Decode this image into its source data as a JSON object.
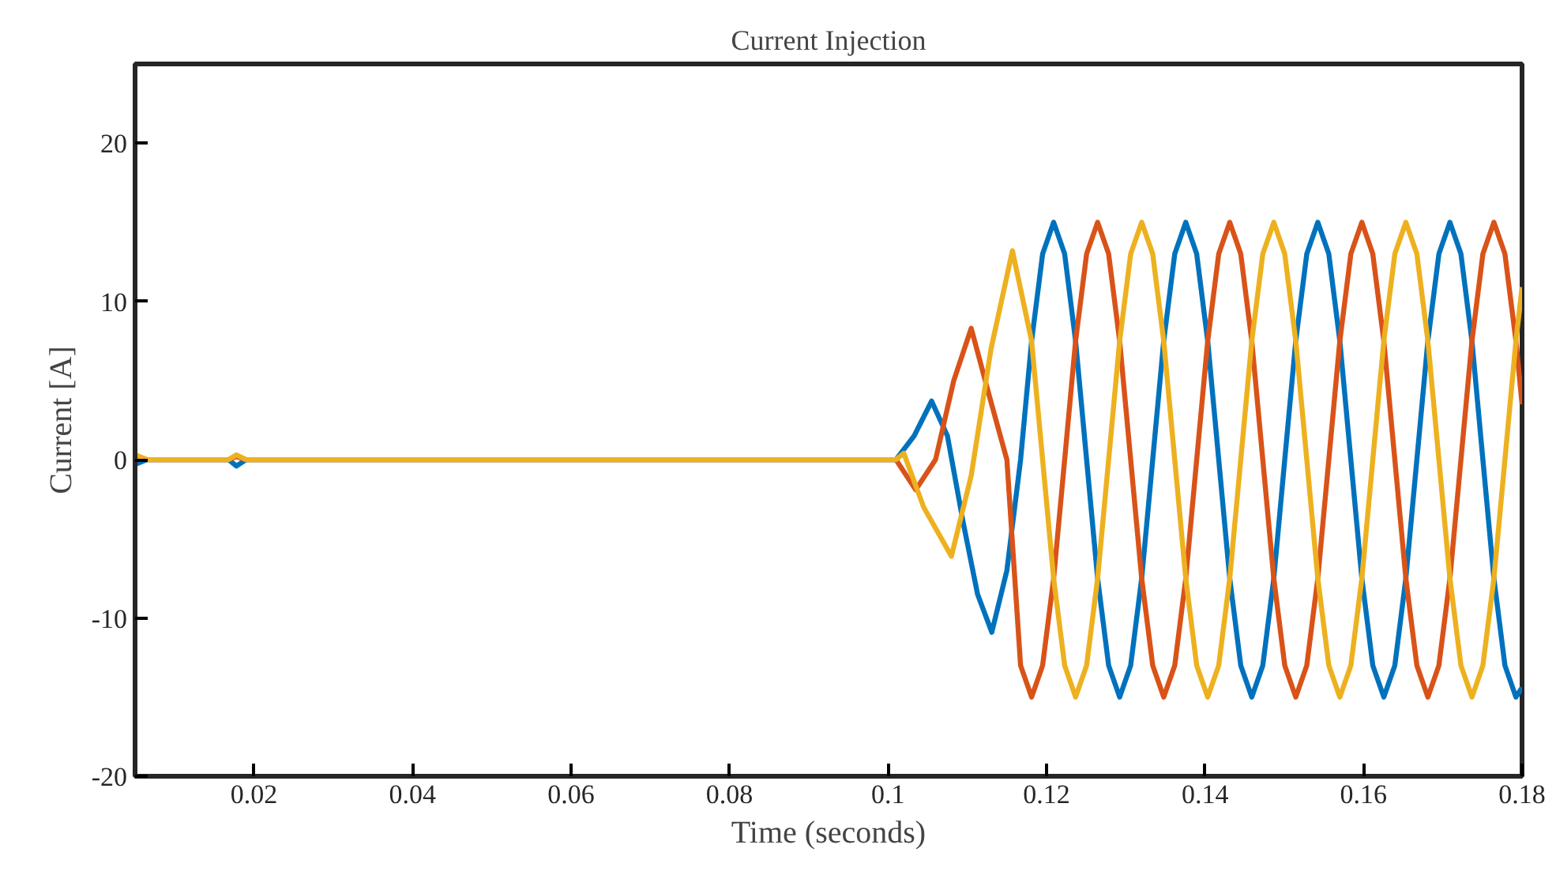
{
  "chart_data": {
    "type": "line",
    "title": "Current Injection",
    "xlabel": "Time (seconds)",
    "ylabel": "Current [A]",
    "xlim": [
      0.005,
      0.18
    ],
    "ylim": [
      -20,
      25
    ],
    "xticks": [
      0.02,
      0.04,
      0.06,
      0.08,
      0.1,
      0.12,
      0.14,
      0.16,
      0.18
    ],
    "yticks": [
      -20,
      -10,
      0,
      10,
      20
    ],
    "grid": false,
    "marker": "none",
    "line_style": "solid",
    "series": [
      {
        "color": "#0072bd",
        "x": [
          0.005,
          0.0065,
          0.0168,
          0.0178,
          0.019,
          0.101,
          0.1033,
          0.1055,
          0.1075,
          0.1095,
          0.1113,
          0.1131,
          0.115,
          0.11673,
          0.11812,
          0.11951,
          0.1209,
          0.12229,
          0.12367,
          0.12506,
          0.12645,
          0.12784,
          0.12923,
          0.13062,
          0.13201,
          0.1334,
          0.13479,
          0.13618,
          0.13757,
          0.13895,
          0.14034,
          0.14173,
          0.14312,
          0.14451,
          0.1459,
          0.14729,
          0.14868,
          0.15006,
          0.15145,
          0.15284,
          0.15423,
          0.15562,
          0.15701,
          0.1584,
          0.15979,
          0.16117,
          0.16256,
          0.16395,
          0.16534,
          0.16673,
          0.16812,
          0.16951,
          0.1709,
          0.17229,
          0.17368,
          0.17506,
          0.17645,
          0.17784,
          0.17923,
          0.18
        ],
        "values": [
          -0.3,
          0,
          0,
          -0.4,
          0,
          0,
          1.5,
          3.7,
          1.5,
          -4,
          -8.5,
          -10.9,
          -7,
          0,
          7.5,
          13,
          15,
          13,
          7.5,
          0,
          -7.5,
          -13,
          -15,
          -13,
          -7.5,
          0,
          7.5,
          13,
          15,
          13,
          7.5,
          0,
          -7.5,
          -13,
          -15,
          -13,
          -7.5,
          0,
          7.5,
          13,
          15,
          13,
          7.5,
          0,
          -7.5,
          -13,
          -15,
          -13,
          -7.5,
          0,
          7.5,
          13,
          15,
          13,
          7.5,
          0,
          -7.5,
          -13,
          -15,
          -14.4
        ]
      },
      {
        "color": "#d95319",
        "x": [
          0.005,
          0.0065,
          0.0168,
          0.0178,
          0.019,
          0.101,
          0.1035,
          0.106,
          0.1083,
          0.1105,
          0.1128,
          0.115,
          0.11673,
          0.11812,
          0.11951,
          0.1209,
          0.12229,
          0.12367,
          0.12506,
          0.12645,
          0.12784,
          0.12923,
          0.13062,
          0.13201,
          0.1334,
          0.13479,
          0.13618,
          0.13757,
          0.13895,
          0.14034,
          0.14173,
          0.14312,
          0.14451,
          0.1459,
          0.14729,
          0.14868,
          0.15006,
          0.15145,
          0.15284,
          0.15423,
          0.15562,
          0.15701,
          0.1584,
          0.15979,
          0.16117,
          0.16256,
          0.16395,
          0.16534,
          0.16673,
          0.16812,
          0.16951,
          0.1709,
          0.17229,
          0.17368,
          0.17506,
          0.17645,
          0.17784,
          0.17923,
          0.18
        ],
        "values": [
          0.3,
          0,
          0,
          0.2,
          0,
          0,
          -1.9,
          0,
          5,
          8.3,
          4,
          0,
          -13,
          -15,
          -13,
          -7.5,
          0,
          7.5,
          13,
          15,
          13,
          7.5,
          0,
          -7.5,
          -13,
          -15,
          -13,
          -7.5,
          0,
          7.5,
          13,
          15,
          13,
          7.5,
          0,
          -7.5,
          -13,
          -15,
          -13,
          -7.5,
          0,
          7.5,
          13,
          15,
          13,
          7.5,
          0,
          -7.5,
          -13,
          -15,
          -13,
          -7.5,
          0,
          7.5,
          13,
          15,
          13,
          7.5,
          3.5
        ]
      },
      {
        "color": "#edb120",
        "x": [
          0.005,
          0.0065,
          0.0168,
          0.0178,
          0.019,
          0.101,
          0.102,
          0.1045,
          0.108,
          0.1105,
          0.113,
          0.1157,
          0.11812,
          0.11951,
          0.1209,
          0.12229,
          0.12367,
          0.12506,
          0.12645,
          0.12784,
          0.12923,
          0.13062,
          0.13201,
          0.1334,
          0.13479,
          0.13618,
          0.13757,
          0.13895,
          0.14034,
          0.14173,
          0.14312,
          0.14451,
          0.1459,
          0.14729,
          0.14868,
          0.15006,
          0.15145,
          0.15284,
          0.15423,
          0.15562,
          0.15701,
          0.1584,
          0.15979,
          0.16117,
          0.16256,
          0.16395,
          0.16534,
          0.16673,
          0.16812,
          0.16951,
          0.1709,
          0.17229,
          0.17368,
          0.17506,
          0.17645,
          0.17784,
          0.17923,
          0.18
        ],
        "values": [
          0.3,
          0,
          0,
          0.3,
          0,
          0,
          0.4,
          -3,
          -6.1,
          -1,
          7,
          13.2,
          7.5,
          0,
          -7.5,
          -13,
          -15,
          -13,
          -7.5,
          0,
          7.5,
          13,
          15,
          13,
          7.5,
          0,
          -7.5,
          -13,
          -15,
          -13,
          -7.5,
          0,
          7.5,
          13,
          15,
          13,
          7.5,
          0,
          -7.5,
          -13,
          -15,
          -13,
          -7.5,
          0,
          7.5,
          13,
          15,
          13,
          7.5,
          0,
          -7.5,
          -13,
          -15,
          -13,
          -7.5,
          0,
          7.5,
          10.9
        ]
      }
    ]
  }
}
